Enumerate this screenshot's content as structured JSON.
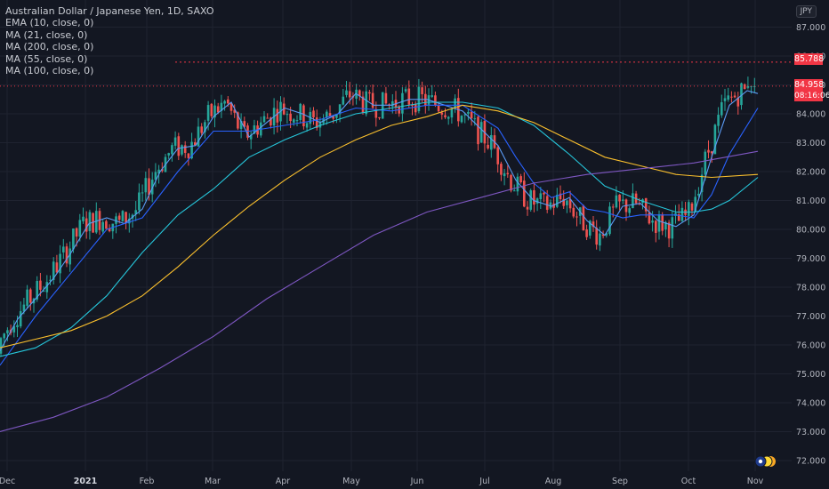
{
  "header": {
    "title": "Australian Dollar / Japanese Yen, 1D, SAXO",
    "currency": "JPY"
  },
  "legend": [
    "EMA (10, close, 0)",
    "MA (21, close, 0)",
    "MA (200, close, 0)",
    "MA (55, close, 0)",
    "MA (100, close, 0)"
  ],
  "price_tags": {
    "high_line": "85.788",
    "last_price": "84.958",
    "countdown": "08:16:06"
  },
  "colors": {
    "background": "#131722",
    "up": "#26a69a",
    "down": "#ef5350",
    "ema10": "#5b9cf6",
    "ma21": "#2962ff",
    "ma200": "#26c6da",
    "ma55": "#fbc02d",
    "ma100": "#7e57c2"
  },
  "chart_data": {
    "type": "candlestick",
    "y_ticks": [
      "87.000",
      "86.000",
      "85.000",
      "84.000",
      "83.000",
      "82.000",
      "81.000",
      "80.000",
      "79.000",
      "78.000",
      "77.000",
      "76.000",
      "75.000",
      "74.000",
      "73.000",
      "72.000"
    ],
    "x_ticks": [
      "Dec",
      "2021",
      "Feb",
      "Mar",
      "Apr",
      "May",
      "Jun",
      "Jul",
      "Aug",
      "Sep",
      "Oct",
      "Nov"
    ],
    "ylim": [
      71.7,
      87.5
    ],
    "series": [
      {
        "name": "EMA (10, close, 0)",
        "x": [
          0,
          20,
          40,
          60,
          80,
          100,
          120,
          140,
          160,
          180,
          200,
          220,
          240,
          260,
          280,
          300,
          320,
          340,
          360,
          380,
          400,
          420,
          440,
          460,
          480,
          500,
          520,
          540,
          560,
          580,
          600,
          620,
          640,
          660,
          680,
          700,
          720,
          740,
          760,
          780,
          800,
          820,
          840,
          852
        ],
        "values": [
          75.8,
          76.9,
          77.6,
          78.3,
          79.2,
          80.2,
          80.4,
          80.2,
          80.7,
          82.0,
          82.8,
          82.9,
          83.9,
          84.4,
          83.2,
          83.7,
          84.2,
          84.0,
          83.7,
          84.0,
          84.7,
          84.3,
          84.3,
          84.5,
          84.5,
          84.3,
          84.1,
          83.5,
          82.9,
          81.7,
          81.0,
          80.8,
          81.1,
          80.3,
          79.8,
          80.8,
          80.9,
          80.3,
          80.1,
          80.5,
          82.5,
          84.3,
          84.8,
          84.7
        ]
      },
      {
        "name": "MA (21, close, 0)",
        "x": [
          0,
          40,
          80,
          120,
          160,
          200,
          240,
          280,
          320,
          360,
          400,
          440,
          480,
          520,
          560,
          580,
          600,
          620,
          640,
          660,
          680,
          700,
          720,
          740,
          760,
          780,
          800,
          820,
          852
        ],
        "values": [
          75.3,
          77.0,
          78.5,
          80.0,
          80.4,
          82.0,
          83.4,
          83.4,
          83.6,
          83.8,
          84.2,
          84.1,
          84.3,
          84.3,
          83.5,
          82.5,
          81.6,
          81.1,
          81.3,
          80.7,
          80.6,
          80.4,
          80.5,
          80.5,
          80.5,
          80.4,
          81.2,
          82.6,
          84.2
        ]
      },
      {
        "name": "MA (55, close, 0)",
        "x": [
          0,
          40,
          80,
          120,
          160,
          200,
          240,
          280,
          320,
          360,
          400,
          440,
          480,
          520,
          560,
          600,
          640,
          680,
          720,
          760,
          780,
          800,
          820,
          852
        ],
        "values": [
          75.6,
          75.9,
          76.6,
          77.7,
          79.2,
          80.5,
          81.4,
          82.5,
          83.1,
          83.6,
          84.0,
          84.2,
          84.4,
          84.4,
          84.2,
          83.6,
          82.6,
          81.5,
          81.0,
          80.6,
          80.6,
          80.7,
          81.0,
          81.8
        ]
      },
      {
        "name": "MA (100, close, 0)",
        "x": [
          0,
          40,
          80,
          120,
          160,
          200,
          240,
          280,
          320,
          360,
          400,
          440,
          480,
          520,
          560,
          600,
          640,
          680,
          720,
          760,
          800,
          852
        ],
        "values": [
          75.9,
          76.2,
          76.5,
          77.0,
          77.7,
          78.7,
          79.8,
          80.8,
          81.7,
          82.5,
          83.1,
          83.6,
          83.9,
          84.3,
          84.1,
          83.7,
          83.1,
          82.5,
          82.2,
          81.9,
          81.8,
          81.9
        ]
      },
      {
        "name": "MA (200, close, 0)",
        "x": [
          0,
          60,
          120,
          180,
          240,
          300,
          360,
          420,
          480,
          540,
          600,
          660,
          720,
          780,
          852
        ],
        "values": [
          73.0,
          73.5,
          74.2,
          75.2,
          76.3,
          77.6,
          78.7,
          79.8,
          80.6,
          81.1,
          81.6,
          81.9,
          82.1,
          82.3,
          82.7
        ]
      }
    ]
  }
}
